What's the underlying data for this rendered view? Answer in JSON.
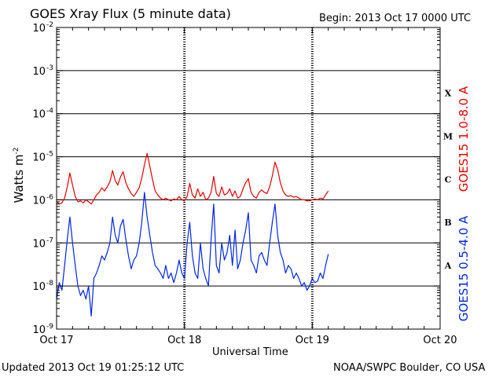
{
  "header": {
    "title": "GOES Xray Flux (5 minute data)",
    "begin": "Begin:  2013 Oct 17 0000 UTC"
  },
  "footer": {
    "updated": "Updated 2013 Oct 19 01:25:12 UTC",
    "credit": "NOAA/SWPC Boulder, CO USA"
  },
  "colors": {
    "long_channel": "#e60000",
    "short_channel": "#0026e6",
    "grid": "#000000"
  },
  "chart_data": {
    "type": "line",
    "title": "GOES Xray Flux (5 minute data)",
    "xlabel": "Universal Time",
    "ylabel": "Watts m",
    "ylabel_superscript": "-2",
    "yscale": "log",
    "ylim": [
      1e-09,
      0.01
    ],
    "xlim": [
      0,
      72
    ],
    "x_unit": "hours since 2013 Oct 17 0000 UTC",
    "grid": true,
    "x_ticks": [
      {
        "value": 0,
        "label": "Oct 17"
      },
      {
        "value": 24,
        "label": "Oct 18"
      },
      {
        "value": 48,
        "label": "Oct 19"
      },
      {
        "value": 72,
        "label": "Oct 20"
      }
    ],
    "y_ticks": [
      {
        "value": 1e-09,
        "base": "10",
        "exp": "-9"
      },
      {
        "value": 1e-08,
        "base": "10",
        "exp": "-8"
      },
      {
        "value": 1e-07,
        "base": "10",
        "exp": "-7"
      },
      {
        "value": 1e-06,
        "base": "10",
        "exp": "-6"
      },
      {
        "value": 1e-05,
        "base": "10",
        "exp": "-5"
      },
      {
        "value": 0.0001,
        "base": "10",
        "exp": "-4"
      },
      {
        "value": 0.001,
        "base": "10",
        "exp": "-3"
      },
      {
        "value": 0.01,
        "base": "10",
        "exp": "-2"
      }
    ],
    "flare_classes": [
      {
        "label": "A",
        "value": 3e-08
      },
      {
        "label": "B",
        "value": 3e-07
      },
      {
        "label": "C",
        "value": 3e-06
      },
      {
        "label": "M",
        "value": 3e-05
      },
      {
        "label": "X",
        "value": 0.0003
      }
    ],
    "series": [
      {
        "name": "GOES15 1.0-8.0 A",
        "x": [
          0,
          0.5,
          1,
          1.5,
          2,
          2.5,
          3,
          3.5,
          4,
          4.5,
          5,
          5.5,
          6,
          6.5,
          7,
          7.5,
          8,
          8.5,
          9,
          9.5,
          10,
          10.5,
          11,
          11.5,
          12,
          12.5,
          13,
          13.5,
          14,
          14.5,
          15,
          15.5,
          16,
          16.5,
          17,
          17.5,
          18,
          18.5,
          19,
          19.5,
          20,
          20.5,
          21,
          21.5,
          22,
          22.5,
          23,
          23.5,
          24,
          24.5,
          25,
          25.5,
          26,
          26.5,
          27,
          27.5,
          28,
          28.5,
          29,
          29.5,
          30,
          30.5,
          31,
          31.5,
          32,
          32.5,
          33,
          33.5,
          34,
          34.5,
          35,
          35.5,
          36,
          36.5,
          37,
          37.5,
          38,
          38.5,
          39,
          39.5,
          40,
          40.5,
          41,
          41.5,
          42,
          42.5,
          43,
          43.5,
          44,
          44.5,
          45,
          45.5,
          46,
          46.5,
          47,
          47.5,
          48,
          48.5,
          49,
          49.5,
          50,
          50.5,
          51
        ],
        "values": [
          9e-07,
          8e-07,
          8.5e-07,
          1.1e-06,
          2e-06,
          4.2e-06,
          2.2e-06,
          1.2e-06,
          9e-07,
          9.5e-07,
          8.5e-07,
          1e-06,
          9e-07,
          8e-07,
          1e-06,
          1.3e-06,
          1.5e-06,
          1.9e-06,
          1.6e-06,
          2e-06,
          2.6e-06,
          4.8e-06,
          2.8e-06,
          2.2e-06,
          3.4e-06,
          4.5e-06,
          2.5e-06,
          1.8e-06,
          1.4e-06,
          1.2e-06,
          1.5e-06,
          1.9e-06,
          3.2e-06,
          6.5e-06,
          1.2e-05,
          6e-06,
          3e-06,
          1.6e-06,
          1.3e-06,
          1.1e-06,
          1e-06,
          1.1e-06,
          1e-06,
          9.5e-07,
          1.05e-06,
          1e-06,
          1.2e-06,
          1e-06,
          9.5e-07,
          1.2e-06,
          2.4e-06,
          1.3e-06,
          1.1e-06,
          1.8e-06,
          1.2e-06,
          1.5e-06,
          1e-06,
          1.1e-06,
          1.5e-06,
          3.5e-06,
          1.4e-06,
          1.2e-06,
          2e-06,
          1.3e-06,
          1.4e-06,
          1.8e-06,
          1.2e-06,
          1.6e-06,
          1.1e-06,
          1.2e-06,
          1.8e-06,
          2.5e-06,
          3.1e-06,
          1.5e-06,
          1.2e-06,
          1.1e-06,
          1.5e-06,
          1.7e-06,
          1.5e-06,
          1.4e-06,
          2e-06,
          3.6e-06,
          7.5e-06,
          5e-06,
          2.5e-06,
          1.6e-06,
          1.3e-06,
          1.2e-06,
          1.25e-06,
          1.15e-06,
          1.2e-06,
          1.1e-06,
          1e-06,
          1e-06,
          9.5e-07,
          9.5e-07,
          1e-06,
          1.05e-06,
          1e-06,
          1.1e-06,
          1.05e-06,
          1.3e-06,
          1.6e-06
        ]
      },
      {
        "name": "GOES15 0.5-4.0 A",
        "x": [
          0,
          0.5,
          1,
          1.5,
          2,
          2.5,
          3,
          3.5,
          4,
          4.5,
          5,
          5.5,
          6,
          6.5,
          7,
          7.5,
          8,
          8.5,
          9,
          9.5,
          10,
          10.5,
          11,
          11.5,
          12,
          12.5,
          13,
          13.5,
          14,
          14.5,
          15,
          15.5,
          16,
          16.5,
          17,
          17.5,
          18,
          18.5,
          19,
          19.5,
          20,
          20.5,
          21,
          21.5,
          22,
          22.5,
          23,
          23.5,
          24,
          24.5,
          25,
          25.5,
          26,
          26.5,
          27,
          27.5,
          28,
          28.5,
          29,
          29.5,
          30,
          30.5,
          31,
          31.5,
          32,
          32.5,
          33,
          33.5,
          34,
          34.5,
          35,
          35.5,
          36,
          36.5,
          37,
          37.5,
          38,
          38.5,
          39,
          39.5,
          40,
          40.5,
          41,
          41.5,
          42,
          42.5,
          43,
          43.5,
          44,
          44.5,
          45,
          45.5,
          46,
          46.5,
          47,
          47.5,
          48,
          48.5,
          49,
          49.5,
          50,
          50.5,
          51
        ],
        "values": [
          5e-09,
          1.2e-08,
          8e-09,
          3e-08,
          1.2e-07,
          4e-07,
          1e-07,
          3e-08,
          1e-08,
          6e-09,
          8e-09,
          5e-09,
          1e-08,
          2e-09,
          1.5e-08,
          2e-08,
          3e-08,
          5e-08,
          4e-08,
          6e-08,
          1e-07,
          4e-07,
          1.5e-07,
          1e-07,
          2.5e-07,
          3.5e-07,
          1.2e-07,
          5e-08,
          2.5e-08,
          4e-08,
          5e-08,
          1e-07,
          3e-07,
          1.5e-06,
          4e-07,
          1.5e-07,
          6e-08,
          3e-08,
          2.5e-08,
          2e-08,
          1.5e-08,
          3e-08,
          1.5e-08,
          2e-08,
          1.2e-08,
          2e-08,
          4e-08,
          2e-08,
          1.5e-08,
          1e-07,
          3e-07,
          5e-08,
          2e-08,
          1.5e-08,
          1e-07,
          2.5e-08,
          1.5e-08,
          1e-08,
          1.2e-07,
          8e-07,
          3e-08,
          2e-08,
          1e-07,
          4e-08,
          6e-08,
          1.5e-07,
          3e-08,
          2e-07,
          2.5e-08,
          4e-08,
          1e-07,
          2e-07,
          5e-07,
          4e-08,
          3e-08,
          2e-08,
          5e-08,
          6e-08,
          4e-08,
          3e-08,
          1e-07,
          3e-07,
          8e-07,
          1.5e-07,
          6e-08,
          4e-08,
          2e-08,
          3e-08,
          2.5e-08,
          1.5e-08,
          2e-08,
          1.5e-08,
          1e-08,
          1.2e-08,
          8e-09,
          1e-08,
          1.5e-08,
          1.2e-08,
          1.3e-08,
          2e-08,
          1.5e-08,
          3e-08,
          5.5e-08
        ]
      }
    ]
  }
}
